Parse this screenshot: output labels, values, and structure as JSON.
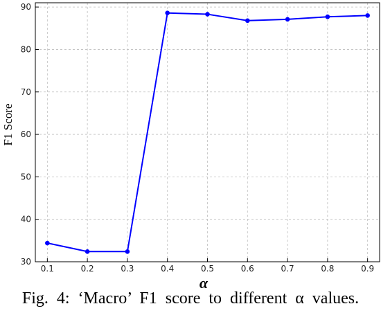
{
  "colors": {
    "line": "#0000ff",
    "grid": "#bdbdbd",
    "axis": "#000000",
    "background": "#ffffff"
  },
  "caption": "Fig. 4: ‘Macro’ F1 score to different α values.",
  "chart_data": {
    "type": "line",
    "title": "",
    "xlabel": "α",
    "ylabel": "F1 Score",
    "x": [
      0.1,
      0.2,
      0.3,
      0.4,
      0.5,
      0.6,
      0.7,
      0.8,
      0.9
    ],
    "xticks": [
      0.1,
      0.2,
      0.3,
      0.4,
      0.5,
      0.6,
      0.7,
      0.8,
      0.9
    ],
    "xtick_labels": [
      "0.1",
      "0.2",
      "0.3",
      "0.4",
      "0.5",
      "0.6",
      "0.7",
      "0.8",
      "0.9"
    ],
    "xlim": [
      0.07,
      0.93
    ],
    "yticks": [
      30,
      40,
      50,
      60,
      70,
      80,
      90
    ],
    "ytick_labels": [
      "30",
      "40",
      "50",
      "60",
      "70",
      "80",
      "90"
    ],
    "ylim": [
      30,
      91
    ],
    "grid": true,
    "legend": "none",
    "series": [
      {
        "values": [
          34.4,
          32.4,
          32.4,
          88.6,
          88.3,
          86.8,
          87.1,
          87.7,
          88.0
        ]
      }
    ]
  }
}
